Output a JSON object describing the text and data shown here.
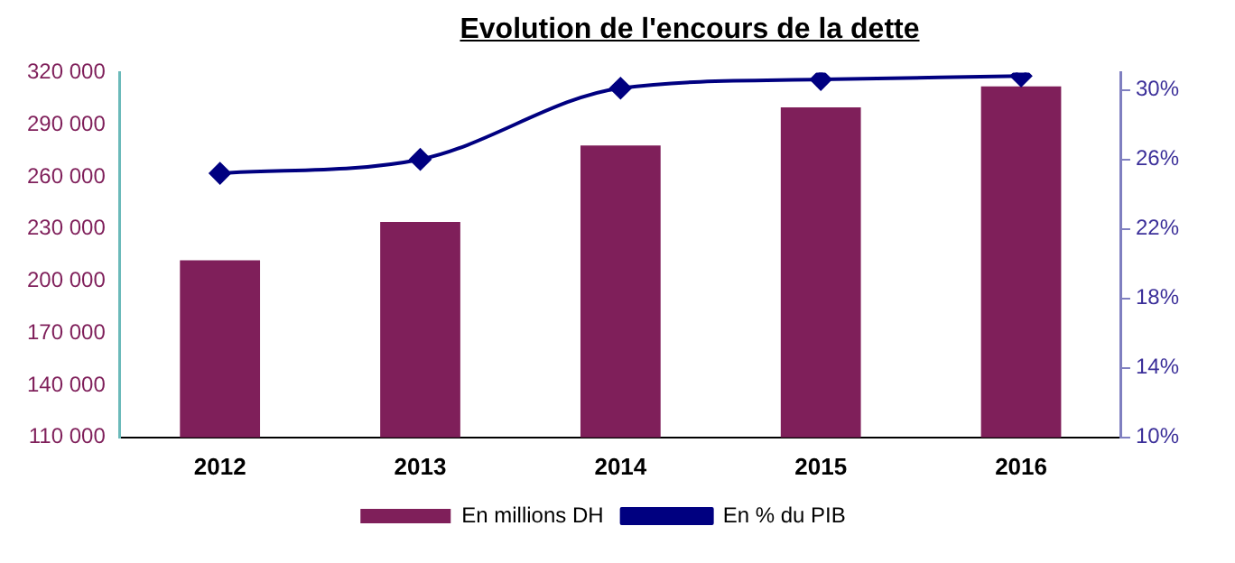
{
  "chart_data": {
    "type": "bar",
    "title": "Evolution de l'encours de la dette",
    "categories": [
      "2012",
      "2013",
      "2014",
      "2015",
      "2016"
    ],
    "series": [
      {
        "name": "En millions DH",
        "color": "#7f1f5a",
        "values": [
          212000,
          234000,
          278000,
          300000,
          312000
        ]
      },
      {
        "name": "En % du PIB",
        "type": "line",
        "axis": "y2",
        "color": "#000080",
        "marker": "diamond",
        "values": [
          25.2,
          26.0,
          30.1,
          30.6,
          30.8
        ]
      }
    ],
    "ylim": [
      110000,
      320000
    ],
    "yticks": [
      {
        "value": 110000,
        "label": "110 000"
      },
      {
        "value": 140000,
        "label": "140 000"
      },
      {
        "value": 170000,
        "label": "170 000"
      },
      {
        "value": 200000,
        "label": "200 000"
      },
      {
        "value": 230000,
        "label": "230 000"
      },
      {
        "value": 260000,
        "label": "260 000"
      },
      {
        "value": 290000,
        "label": "290 000"
      },
      {
        "value": 320000,
        "label": "320 000"
      }
    ],
    "y2lim": [
      10,
      31
    ],
    "y2ticks": [
      {
        "value": 10,
        "label": "10%"
      },
      {
        "value": 14,
        "label": "14%"
      },
      {
        "value": 18,
        "label": "18%"
      },
      {
        "value": 22,
        "label": "22%"
      },
      {
        "value": 26,
        "label": "26%"
      },
      {
        "value": 30,
        "label": "30%"
      }
    ],
    "grid": false,
    "legend": "bottom"
  }
}
